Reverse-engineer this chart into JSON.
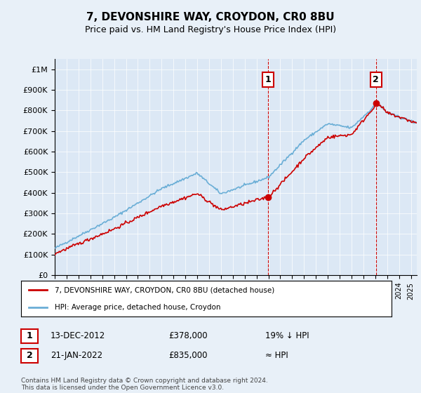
{
  "title": "7, DEVONSHIRE WAY, CROYDON, CR0 8BU",
  "subtitle": "Price paid vs. HM Land Registry's House Price Index (HPI)",
  "background_color": "#e8f0f8",
  "plot_bg_color": "#dce8f5",
  "ylim": [
    0,
    1050000
  ],
  "yticks": [
    0,
    100000,
    200000,
    300000,
    400000,
    500000,
    600000,
    700000,
    800000,
    900000,
    1000000
  ],
  "ytick_labels": [
    "£0",
    "£100K",
    "£200K",
    "£300K",
    "£400K",
    "£500K",
    "£600K",
    "£700K",
    "£800K",
    "£900K",
    "£1M"
  ],
  "hpi_color": "#6aaed6",
  "price_color": "#cc0000",
  "marker_color": "#cc0000",
  "sale1_x": 2012.95,
  "sale1_y": 378000,
  "sale1_label": "1",
  "sale1_date": "13-DEC-2012",
  "sale1_price": "£378,000",
  "sale1_note": "19% ↓ HPI",
  "sale2_x": 2022.05,
  "sale2_y": 835000,
  "sale2_label": "2",
  "sale2_date": "21-JAN-2022",
  "sale2_price": "£835,000",
  "sale2_note": "≈ HPI",
  "legend_label1": "7, DEVONSHIRE WAY, CROYDON, CR0 8BU (detached house)",
  "legend_label2": "HPI: Average price, detached house, Croydon",
  "footer": "Contains HM Land Registry data © Crown copyright and database right 2024.\nThis data is licensed under the Open Government Licence v3.0.",
  "xmin": 1995,
  "xmax": 2025.5
}
